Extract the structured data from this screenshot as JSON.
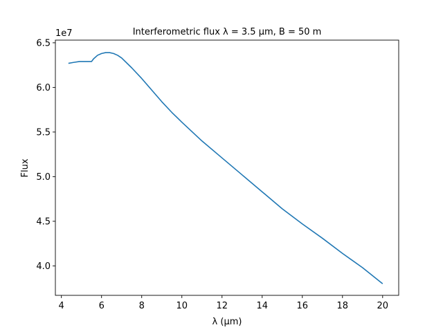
{
  "chart_data": {
    "type": "line",
    "title": "Interferometric flux λ = 3.5 μm, B = 50 m",
    "xlabel": "λ (μm)",
    "ylabel": "Flux",
    "y_offset_label": "1e7",
    "xlim": [
      3.7,
      20.8
    ],
    "ylim": [
      3.67,
      6.53
    ],
    "x_ticks": [
      4,
      6,
      8,
      10,
      12,
      14,
      16,
      18,
      20
    ],
    "x_tick_labels": [
      "4",
      "6",
      "8",
      "10",
      "12",
      "14",
      "16",
      "18",
      "20"
    ],
    "y_ticks": [
      4.0,
      4.5,
      5.0,
      5.5,
      6.0,
      6.5
    ],
    "y_tick_labels": [
      "4.0",
      "4.5",
      "5.0",
      "5.5",
      "6.0",
      "6.5"
    ],
    "grid": false,
    "series": [
      {
        "color": "#1f77b4",
        "x": [
          4.35,
          4.6,
          4.9,
          5.15,
          5.5,
          5.6,
          5.8,
          6.0,
          6.2,
          6.4,
          6.6,
          6.8,
          7.0,
          7.5,
          8.0,
          8.5,
          9.0,
          9.5,
          10.0,
          11.0,
          12.0,
          13.0,
          14.0,
          15.0,
          16.0,
          17.0,
          18.0,
          19.0,
          20.0
        ],
        "y": [
          6.27,
          6.28,
          6.29,
          6.29,
          6.29,
          6.32,
          6.36,
          6.38,
          6.39,
          6.39,
          6.38,
          6.36,
          6.33,
          6.22,
          6.1,
          5.97,
          5.84,
          5.72,
          5.61,
          5.4,
          5.21,
          5.02,
          4.83,
          4.64,
          4.47,
          4.31,
          4.14,
          3.98,
          3.8
        ]
      }
    ]
  }
}
